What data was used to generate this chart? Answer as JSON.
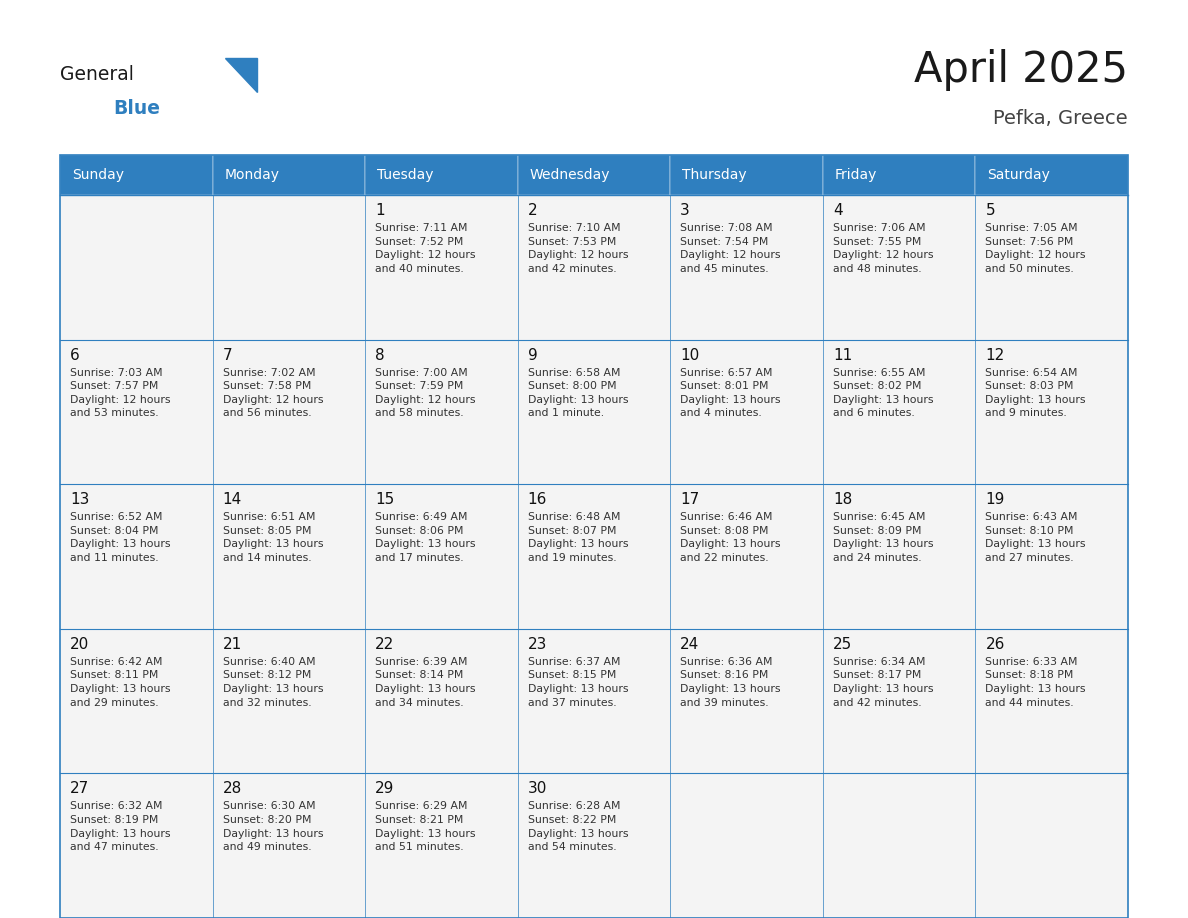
{
  "title": "April 2025",
  "subtitle": "Pefka, Greece",
  "days_of_week": [
    "Sunday",
    "Monday",
    "Tuesday",
    "Wednesday",
    "Thursday",
    "Friday",
    "Saturday"
  ],
  "header_bg": "#2F7FBF",
  "header_text": "#FFFFFF",
  "cell_bg": "#F4F4F4",
  "border_color": "#2F7FBF",
  "day_num_color": "#111111",
  "cell_text_color": "#333333",
  "logo_general_color": "#1a1a1a",
  "logo_blue_color": "#2F7FBF",
  "title_color": "#1a1a1a",
  "subtitle_color": "#444444",
  "calendar": [
    [
      {
        "day": null,
        "info": null
      },
      {
        "day": null,
        "info": null
      },
      {
        "day": 1,
        "info": "Sunrise: 7:11 AM\nSunset: 7:52 PM\nDaylight: 12 hours\nand 40 minutes."
      },
      {
        "day": 2,
        "info": "Sunrise: 7:10 AM\nSunset: 7:53 PM\nDaylight: 12 hours\nand 42 minutes."
      },
      {
        "day": 3,
        "info": "Sunrise: 7:08 AM\nSunset: 7:54 PM\nDaylight: 12 hours\nand 45 minutes."
      },
      {
        "day": 4,
        "info": "Sunrise: 7:06 AM\nSunset: 7:55 PM\nDaylight: 12 hours\nand 48 minutes."
      },
      {
        "day": 5,
        "info": "Sunrise: 7:05 AM\nSunset: 7:56 PM\nDaylight: 12 hours\nand 50 minutes."
      }
    ],
    [
      {
        "day": 6,
        "info": "Sunrise: 7:03 AM\nSunset: 7:57 PM\nDaylight: 12 hours\nand 53 minutes."
      },
      {
        "day": 7,
        "info": "Sunrise: 7:02 AM\nSunset: 7:58 PM\nDaylight: 12 hours\nand 56 minutes."
      },
      {
        "day": 8,
        "info": "Sunrise: 7:00 AM\nSunset: 7:59 PM\nDaylight: 12 hours\nand 58 minutes."
      },
      {
        "day": 9,
        "info": "Sunrise: 6:58 AM\nSunset: 8:00 PM\nDaylight: 13 hours\nand 1 minute."
      },
      {
        "day": 10,
        "info": "Sunrise: 6:57 AM\nSunset: 8:01 PM\nDaylight: 13 hours\nand 4 minutes."
      },
      {
        "day": 11,
        "info": "Sunrise: 6:55 AM\nSunset: 8:02 PM\nDaylight: 13 hours\nand 6 minutes."
      },
      {
        "day": 12,
        "info": "Sunrise: 6:54 AM\nSunset: 8:03 PM\nDaylight: 13 hours\nand 9 minutes."
      }
    ],
    [
      {
        "day": 13,
        "info": "Sunrise: 6:52 AM\nSunset: 8:04 PM\nDaylight: 13 hours\nand 11 minutes."
      },
      {
        "day": 14,
        "info": "Sunrise: 6:51 AM\nSunset: 8:05 PM\nDaylight: 13 hours\nand 14 minutes."
      },
      {
        "day": 15,
        "info": "Sunrise: 6:49 AM\nSunset: 8:06 PM\nDaylight: 13 hours\nand 17 minutes."
      },
      {
        "day": 16,
        "info": "Sunrise: 6:48 AM\nSunset: 8:07 PM\nDaylight: 13 hours\nand 19 minutes."
      },
      {
        "day": 17,
        "info": "Sunrise: 6:46 AM\nSunset: 8:08 PM\nDaylight: 13 hours\nand 22 minutes."
      },
      {
        "day": 18,
        "info": "Sunrise: 6:45 AM\nSunset: 8:09 PM\nDaylight: 13 hours\nand 24 minutes."
      },
      {
        "day": 19,
        "info": "Sunrise: 6:43 AM\nSunset: 8:10 PM\nDaylight: 13 hours\nand 27 minutes."
      }
    ],
    [
      {
        "day": 20,
        "info": "Sunrise: 6:42 AM\nSunset: 8:11 PM\nDaylight: 13 hours\nand 29 minutes."
      },
      {
        "day": 21,
        "info": "Sunrise: 6:40 AM\nSunset: 8:12 PM\nDaylight: 13 hours\nand 32 minutes."
      },
      {
        "day": 22,
        "info": "Sunrise: 6:39 AM\nSunset: 8:14 PM\nDaylight: 13 hours\nand 34 minutes."
      },
      {
        "day": 23,
        "info": "Sunrise: 6:37 AM\nSunset: 8:15 PM\nDaylight: 13 hours\nand 37 minutes."
      },
      {
        "day": 24,
        "info": "Sunrise: 6:36 AM\nSunset: 8:16 PM\nDaylight: 13 hours\nand 39 minutes."
      },
      {
        "day": 25,
        "info": "Sunrise: 6:34 AM\nSunset: 8:17 PM\nDaylight: 13 hours\nand 42 minutes."
      },
      {
        "day": 26,
        "info": "Sunrise: 6:33 AM\nSunset: 8:18 PM\nDaylight: 13 hours\nand 44 minutes."
      }
    ],
    [
      {
        "day": 27,
        "info": "Sunrise: 6:32 AM\nSunset: 8:19 PM\nDaylight: 13 hours\nand 47 minutes."
      },
      {
        "day": 28,
        "info": "Sunrise: 6:30 AM\nSunset: 8:20 PM\nDaylight: 13 hours\nand 49 minutes."
      },
      {
        "day": 29,
        "info": "Sunrise: 6:29 AM\nSunset: 8:21 PM\nDaylight: 13 hours\nand 51 minutes."
      },
      {
        "day": 30,
        "info": "Sunrise: 6:28 AM\nSunset: 8:22 PM\nDaylight: 13 hours\nand 54 minutes."
      },
      {
        "day": null,
        "info": null
      },
      {
        "day": null,
        "info": null
      },
      {
        "day": null,
        "info": null
      }
    ]
  ]
}
